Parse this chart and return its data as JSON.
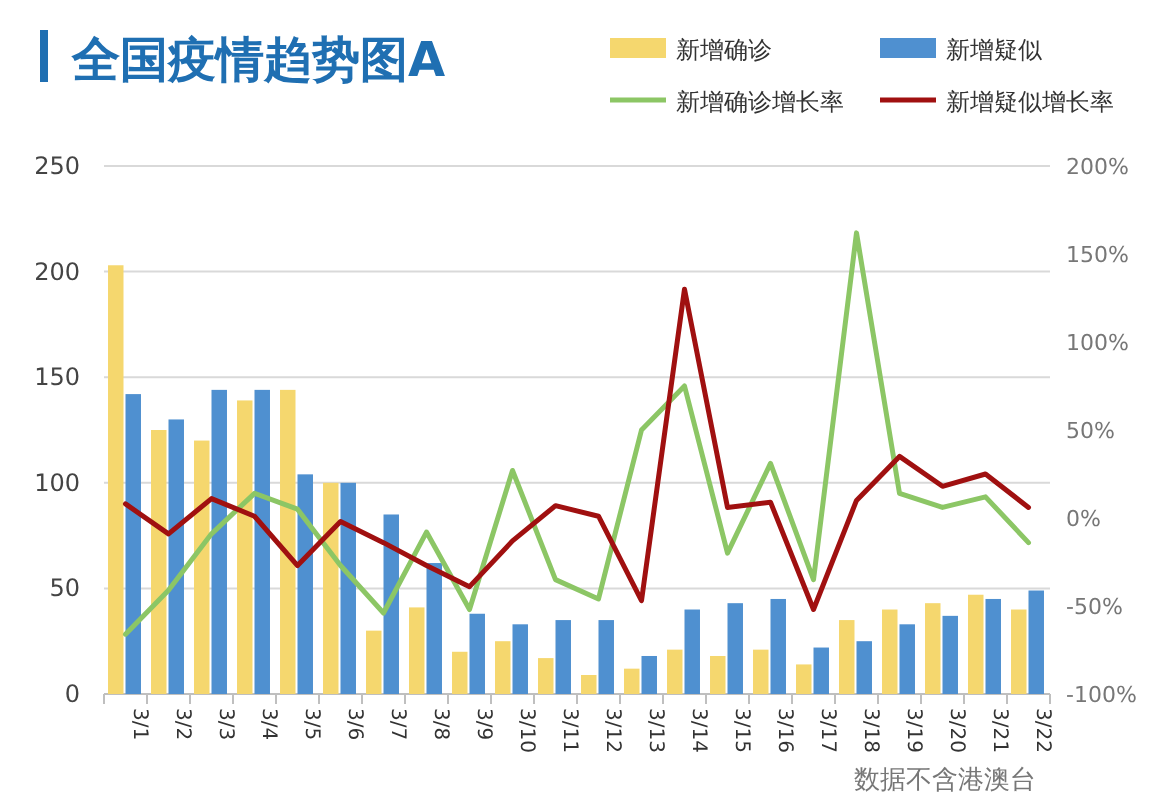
{
  "chart_data": {
    "type": "bar",
    "title": "全国疫情趋势图A",
    "categories": [
      "3/1",
      "3/2",
      "3/3",
      "3/4",
      "3/5",
      "3/6",
      "3/7",
      "3/8",
      "3/9",
      "3/10",
      "3/11",
      "3/12",
      "3/13",
      "3/14",
      "3/15",
      "3/16",
      "3/17",
      "3/18",
      "3/19",
      "3/20",
      "3/21",
      "3/22"
    ],
    "series": [
      {
        "name": "新增确诊",
        "color": "#f5d76e",
        "values": [
          203,
          125,
          120,
          139,
          144,
          100,
          30,
          41,
          20,
          25,
          17,
          9,
          12,
          21,
          18,
          21,
          14,
          35,
          40,
          43,
          47,
          40
        ]
      },
      {
        "name": "新增疑似",
        "color": "#4f90d0",
        "values": [
          142,
          130,
          144,
          144,
          104,
          100,
          85,
          62,
          38,
          33,
          35,
          35,
          18,
          40,
          43,
          45,
          22,
          25,
          33,
          37,
          45,
          49
        ]
      },
      {
        "name": "新增确诊增长率",
        "type": "line",
        "axis": "y2",
        "color": "#8cc665",
        "values": [
          -66,
          -41,
          -9,
          14,
          5,
          -27,
          -54,
          -8,
          -52,
          27,
          -35,
          -46,
          50,
          75,
          -20,
          31,
          -35,
          162,
          14,
          6,
          12,
          -14
        ]
      },
      {
        "name": "新增疑似增长率",
        "type": "line",
        "axis": "y2",
        "color": "#a01010",
        "values": [
          8,
          -9,
          11,
          1,
          -27,
          -2,
          -14,
          -27,
          -39,
          -13,
          7,
          1,
          -47,
          130,
          6,
          9,
          -52,
          10,
          35,
          18,
          25,
          6
        ]
      }
    ],
    "ylim": [
      0,
      250
    ],
    "yticks": [
      0,
      50,
      100,
      150,
      200,
      250
    ],
    "y2lim": [
      -100,
      200
    ],
    "y2ticks": [
      {
        "value": -100,
        "label": "-100%"
      },
      {
        "value": -50,
        "label": "-50%"
      },
      {
        "value": 0,
        "label": "0%"
      },
      {
        "value": 50,
        "label": "50%"
      },
      {
        "value": 100,
        "label": "100%"
      },
      {
        "value": 150,
        "label": "150%"
      },
      {
        "value": 200,
        "label": "200%"
      }
    ],
    "grid": "y",
    "legend": "top right",
    "annotations": [
      "数据不含港澳台"
    ]
  }
}
